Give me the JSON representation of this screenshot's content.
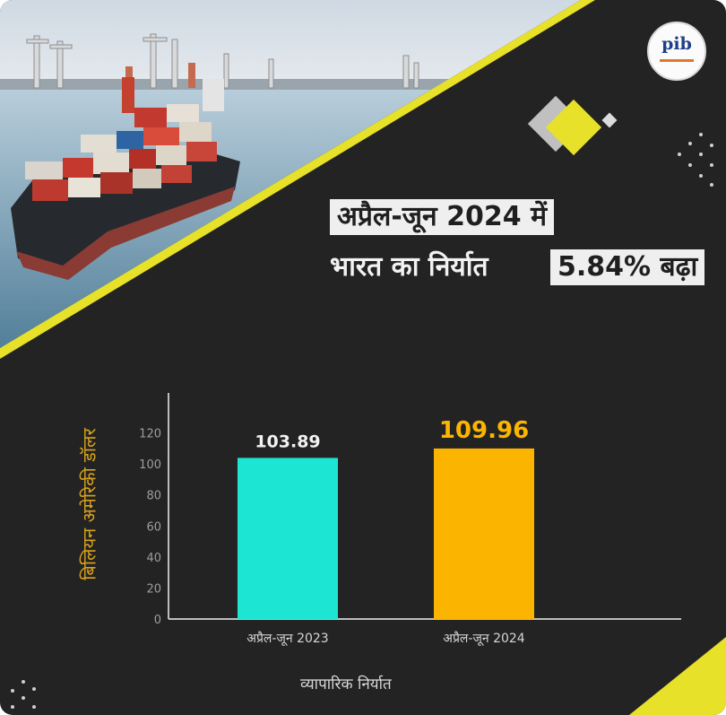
{
  "headline": {
    "line1": "अप्रैल-जून 2024 में",
    "line2_prefix": "भारत का निर्यात",
    "line2_highlight": "5.84% बढ़ा"
  },
  "logo": {
    "text": "pib"
  },
  "colors": {
    "background": "#232323",
    "accent_yellow": "#e7e12a",
    "bar_2023": "#1de5d3",
    "bar_2024": "#fbb400",
    "ylabel": "#d9a21c"
  },
  "chart_data": {
    "type": "bar",
    "categories": [
      "अप्रैल-जून 2023",
      "अप्रैल-जून 2024"
    ],
    "values": [
      103.89,
      109.96
    ],
    "value_labels": [
      "103.89",
      "109.96"
    ],
    "ylabel": "बिलियन अमेरिकी डॉलर",
    "xlabel": "व्यापारिक निर्यात",
    "ylim": [
      0,
      140
    ],
    "yticks": [
      0,
      20,
      40,
      60,
      80,
      100,
      120
    ],
    "grid": false,
    "legend": "none"
  }
}
